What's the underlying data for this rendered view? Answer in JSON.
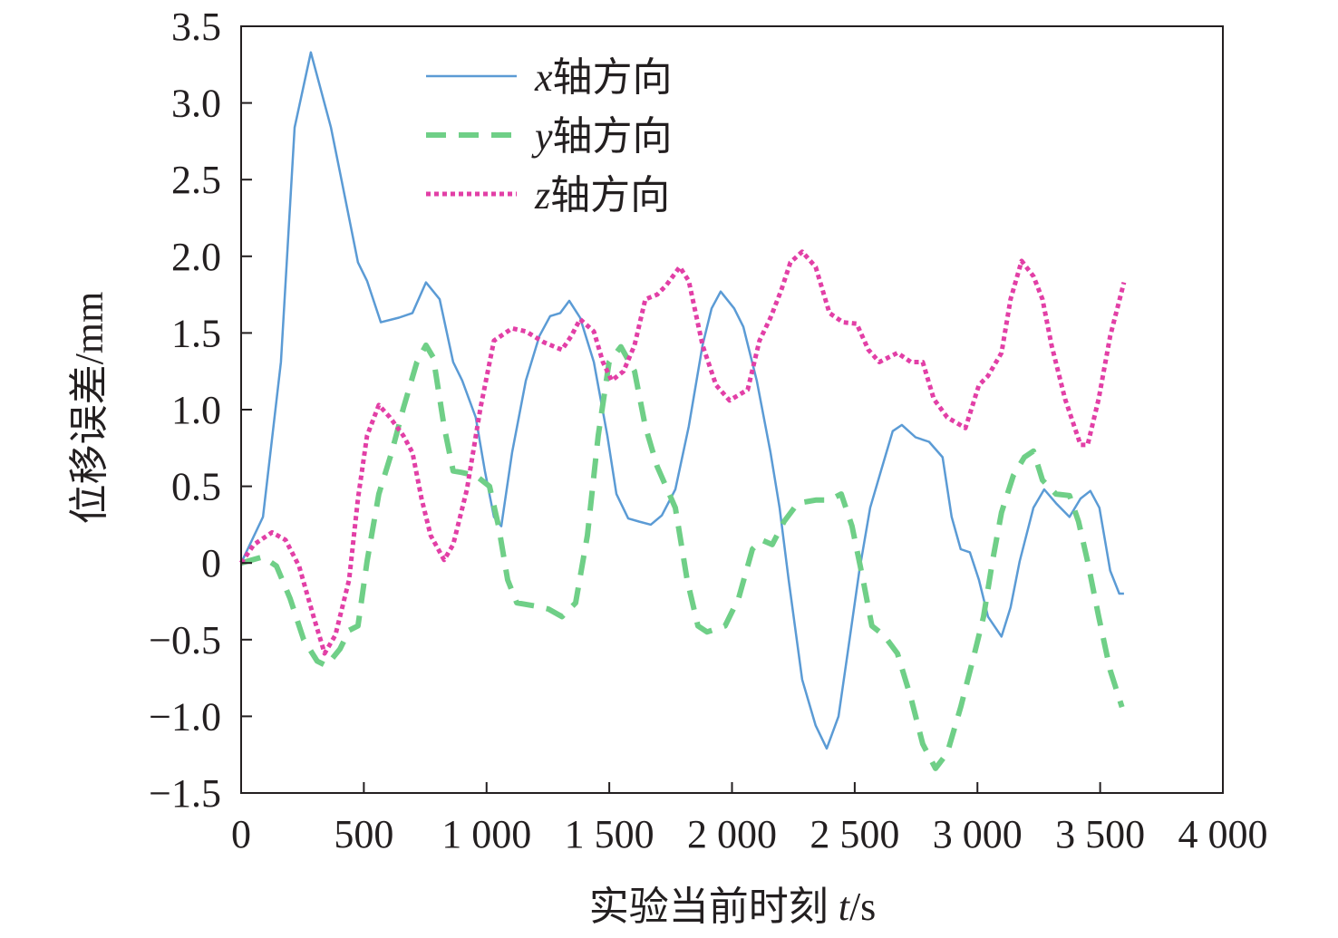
{
  "chart_data": {
    "type": "line",
    "title": "",
    "xlabel": "实验当前时刻 t/s",
    "xlabel_main": "实验当前时刻 ",
    "xlabel_var": "t",
    "xlabel_unit": "/s",
    "ylabel": "位移误差/mm",
    "xlim": [
      0,
      4000
    ],
    "ylim": [
      -1.5,
      3.5
    ],
    "xticks": [
      0,
      500,
      1000,
      1500,
      2000,
      2500,
      3000,
      3500,
      4000
    ],
    "xtick_labels": [
      "0",
      "500",
      "1 000",
      "1 500",
      "2 000",
      "2 500",
      "3 000",
      "3 500",
      "4 000"
    ],
    "yticks": [
      3.5,
      3.0,
      2.5,
      2.0,
      1.5,
      1.0,
      0.5,
      0,
      -0.5,
      -1.0,
      -1.5
    ],
    "ytick_labels": [
      "3.5",
      "3.0",
      "2.5",
      "2.0",
      "1.5",
      "1.0",
      "0.5",
      "0",
      "−0.5",
      "−1.0",
      "−1.5"
    ],
    "grid": false,
    "legend_position": "top-left",
    "series": [
      {
        "name": "x轴方向",
        "var": "x",
        "suffix": "轴方向",
        "color": "#5b9bd5",
        "style": "solid",
        "points": [
          [
            0,
            0
          ],
          [
            89,
            0.3
          ],
          [
            162,
            1.31
          ],
          [
            218,
            2.84
          ],
          [
            284,
            3.33
          ],
          [
            366,
            2.84
          ],
          [
            410,
            2.49
          ],
          [
            476,
            1.96
          ],
          [
            513,
            1.84
          ],
          [
            569,
            1.57
          ],
          [
            643,
            1.6
          ],
          [
            698,
            1.63
          ],
          [
            753,
            1.83
          ],
          [
            809,
            1.72
          ],
          [
            864,
            1.31
          ],
          [
            901,
            1.19
          ],
          [
            956,
            0.95
          ],
          [
            993,
            0.6
          ],
          [
            1030,
            0.3
          ],
          [
            1060,
            0.24
          ],
          [
            1104,
            0.72
          ],
          [
            1160,
            1.19
          ],
          [
            1215,
            1.48
          ],
          [
            1259,
            1.61
          ],
          [
            1300,
            1.63
          ],
          [
            1337,
            1.71
          ],
          [
            1381,
            1.6
          ],
          [
            1437,
            1.31
          ],
          [
            1492,
            0.83
          ],
          [
            1529,
            0.45
          ],
          [
            1577,
            0.29
          ],
          [
            1621,
            0.27
          ],
          [
            1669,
            0.25
          ],
          [
            1714,
            0.31
          ],
          [
            1769,
            0.48
          ],
          [
            1824,
            0.89
          ],
          [
            1880,
            1.42
          ],
          [
            1917,
            1.66
          ],
          [
            1954,
            1.77
          ],
          [
            2009,
            1.66
          ],
          [
            2046,
            1.54
          ],
          [
            2101,
            1.19
          ],
          [
            2157,
            0.72
          ],
          [
            2194,
            0.36
          ],
          [
            2231,
            -0.11
          ],
          [
            2286,
            -0.76
          ],
          [
            2341,
            -1.06
          ],
          [
            2386,
            -1.21
          ],
          [
            2434,
            -1.0
          ],
          [
            2471,
            -0.59
          ],
          [
            2519,
            -0.05
          ],
          [
            2563,
            0.36
          ],
          [
            2607,
            0.6
          ],
          [
            2655,
            0.86
          ],
          [
            2692,
            0.9
          ],
          [
            2748,
            0.82
          ],
          [
            2803,
            0.79
          ],
          [
            2858,
            0.69
          ],
          [
            2895,
            0.3
          ],
          [
            2932,
            0.09
          ],
          [
            2969,
            0.07
          ],
          [
            3006,
            -0.11
          ],
          [
            3043,
            -0.35
          ],
          [
            3098,
            -0.48
          ],
          [
            3135,
            -0.29
          ],
          [
            3172,
            0.01
          ],
          [
            3228,
            0.36
          ],
          [
            3272,
            0.48
          ],
          [
            3320,
            0.39
          ],
          [
            3375,
            0.3
          ],
          [
            3420,
            0.42
          ],
          [
            3460,
            0.47
          ],
          [
            3497,
            0.36
          ],
          [
            3541,
            -0.05
          ],
          [
            3578,
            -0.2
          ],
          [
            3597,
            -0.2
          ]
        ]
      },
      {
        "name": "y轴方向",
        "var": "y",
        "suffix": "轴方向",
        "color": "#6fcf87",
        "style": "dashed",
        "points": [
          [
            0,
            0
          ],
          [
            89,
            0.04
          ],
          [
            144,
            -0.02
          ],
          [
            199,
            -0.23
          ],
          [
            255,
            -0.5
          ],
          [
            310,
            -0.64
          ],
          [
            347,
            -0.67
          ],
          [
            403,
            -0.56
          ],
          [
            440,
            -0.44
          ],
          [
            476,
            -0.41
          ],
          [
            513,
            0.01
          ],
          [
            561,
            0.45
          ],
          [
            613,
            0.72
          ],
          [
            661,
            1.01
          ],
          [
            716,
            1.31
          ],
          [
            753,
            1.42
          ],
          [
            783,
            1.34
          ],
          [
            827,
            0.89
          ],
          [
            864,
            0.6
          ],
          [
            901,
            0.59
          ],
          [
            956,
            0.57
          ],
          [
            1012,
            0.5
          ],
          [
            1049,
            0.24
          ],
          [
            1086,
            -0.11
          ],
          [
            1123,
            -0.26
          ],
          [
            1197,
            -0.28
          ],
          [
            1252,
            -0.3
          ],
          [
            1307,
            -0.35
          ],
          [
            1363,
            -0.26
          ],
          [
            1411,
            0.18
          ],
          [
            1455,
            0.83
          ],
          [
            1499,
            1.31
          ],
          [
            1547,
            1.41
          ],
          [
            1603,
            1.25
          ],
          [
            1647,
            0.89
          ],
          [
            1695,
            0.63
          ],
          [
            1769,
            0.36
          ],
          [
            1817,
            -0.11
          ],
          [
            1861,
            -0.41
          ],
          [
            1898,
            -0.45
          ],
          [
            1972,
            -0.41
          ],
          [
            2027,
            -0.23
          ],
          [
            2083,
            0.09
          ],
          [
            2120,
            0.15
          ],
          [
            2164,
            0.12
          ],
          [
            2212,
            0.27
          ],
          [
            2268,
            0.39
          ],
          [
            2341,
            0.41
          ],
          [
            2397,
            0.41
          ],
          [
            2445,
            0.45
          ],
          [
            2489,
            0.24
          ],
          [
            2534,
            -0.11
          ],
          [
            2570,
            -0.41
          ],
          [
            2618,
            -0.47
          ],
          [
            2674,
            -0.59
          ],
          [
            2729,
            -0.88
          ],
          [
            2777,
            -1.18
          ],
          [
            2829,
            -1.34
          ],
          [
            2877,
            -1.24
          ],
          [
            2932,
            -0.94
          ],
          [
            2988,
            -0.59
          ],
          [
            3025,
            -0.35
          ],
          [
            3061,
            0.01
          ],
          [
            3098,
            0.33
          ],
          [
            3146,
            0.57
          ],
          [
            3191,
            0.69
          ],
          [
            3228,
            0.73
          ],
          [
            3265,
            0.54
          ],
          [
            3320,
            0.45
          ],
          [
            3375,
            0.44
          ],
          [
            3412,
            0.27
          ],
          [
            3449,
            0.01
          ],
          [
            3494,
            -0.35
          ],
          [
            3541,
            -0.7
          ],
          [
            3589,
            -0.94
          ]
        ]
      },
      {
        "name": "z轴方向",
        "var": "z",
        "suffix": "轴方向",
        "color": "#e23fa6",
        "style": "dotted",
        "points": [
          [
            0,
            0
          ],
          [
            52,
            0.12
          ],
          [
            126,
            0.2
          ],
          [
            181,
            0.15
          ],
          [
            236,
            -0.02
          ],
          [
            295,
            -0.35
          ],
          [
            340,
            -0.59
          ],
          [
            384,
            -0.47
          ],
          [
            440,
            -0.11
          ],
          [
            476,
            0.42
          ],
          [
            513,
            0.83
          ],
          [
            561,
            1.03
          ],
          [
            606,
            0.95
          ],
          [
            661,
            0.83
          ],
          [
            698,
            0.72
          ],
          [
            735,
            0.42
          ],
          [
            772,
            0.18
          ],
          [
            827,
            0.02
          ],
          [
            864,
            0.12
          ],
          [
            920,
            0.48
          ],
          [
            975,
            1.01
          ],
          [
            1030,
            1.45
          ],
          [
            1104,
            1.53
          ],
          [
            1160,
            1.51
          ],
          [
            1233,
            1.44
          ],
          [
            1307,
            1.39
          ],
          [
            1345,
            1.48
          ],
          [
            1381,
            1.59
          ],
          [
            1437,
            1.51
          ],
          [
            1474,
            1.31
          ],
          [
            1510,
            1.19
          ],
          [
            1558,
            1.25
          ],
          [
            1603,
            1.42
          ],
          [
            1647,
            1.72
          ],
          [
            1695,
            1.75
          ],
          [
            1732,
            1.81
          ],
          [
            1787,
            1.93
          ],
          [
            1824,
            1.84
          ],
          [
            1880,
            1.42
          ],
          [
            1935,
            1.16
          ],
          [
            1990,
            1.06
          ],
          [
            2064,
            1.13
          ],
          [
            2112,
            1.45
          ],
          [
            2157,
            1.6
          ],
          [
            2201,
            1.78
          ],
          [
            2238,
            1.96
          ],
          [
            2286,
            2.03
          ],
          [
            2341,
            1.93
          ],
          [
            2397,
            1.63
          ],
          [
            2452,
            1.57
          ],
          [
            2508,
            1.56
          ],
          [
            2556,
            1.39
          ],
          [
            2600,
            1.31
          ],
          [
            2674,
            1.37
          ],
          [
            2729,
            1.31
          ],
          [
            2777,
            1.31
          ],
          [
            2822,
            1.07
          ],
          [
            2877,
            0.95
          ],
          [
            2951,
            0.88
          ],
          [
            3006,
            1.16
          ],
          [
            3043,
            1.22
          ],
          [
            3098,
            1.37
          ],
          [
            3135,
            1.72
          ],
          [
            3180,
            1.97
          ],
          [
            3228,
            1.87
          ],
          [
            3265,
            1.72
          ],
          [
            3302,
            1.42
          ],
          [
            3357,
            1.07
          ],
          [
            3420,
            0.77
          ],
          [
            3449,
            0.77
          ],
          [
            3494,
            1.07
          ],
          [
            3541,
            1.48
          ],
          [
            3597,
            1.83
          ]
        ]
      }
    ]
  }
}
